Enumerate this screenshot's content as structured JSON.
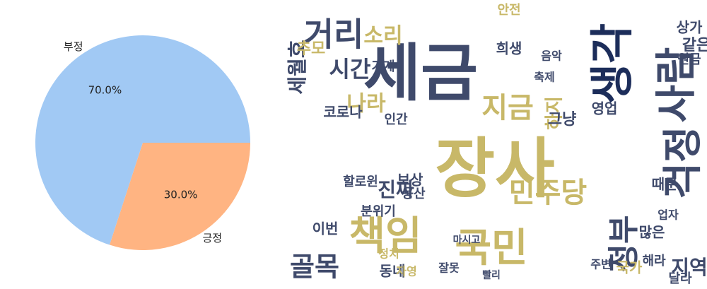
{
  "chart_data": [
    {
      "type": "pie",
      "categories": [
        "부정",
        "긍정"
      ],
      "values": [
        70.0,
        30.0
      ],
      "data_labels": [
        "70.0%",
        "30.0%"
      ],
      "colors": [
        "#a1c9f4",
        "#ffb482"
      ],
      "start_angle_deg": 0,
      "direction": "counterclockwise"
    },
    {
      "type": "wordcloud",
      "palette": [
        "#3f4a6b",
        "#c8b868",
        "#1c2d5a",
        "#8a8a7a"
      ],
      "words": [
        "장사",
        "세금",
        "국민",
        "책임",
        "정부",
        "민주당",
        "골목",
        "거리",
        "소리",
        "시간",
        "나라",
        "지금",
        "하지",
        "코로나",
        "진짜",
        "지역",
        "국가",
        "동네",
        "정치",
        "자영",
        "그냥",
        "생각",
        "사람",
        "걱정",
        "영업",
        "인간",
        "가게",
        "때문",
        "이번",
        "분위기",
        "할로윈",
        "용산",
        "보상",
        "달라",
        "같은",
        "상가",
        "희생",
        "원금",
        "세월호",
        "추모",
        "안전",
        "음악",
        "축제",
        "많은",
        "업자",
        "해라",
        "잘못",
        "빨리",
        "주변",
        "마시고"
      ]
    }
  ]
}
